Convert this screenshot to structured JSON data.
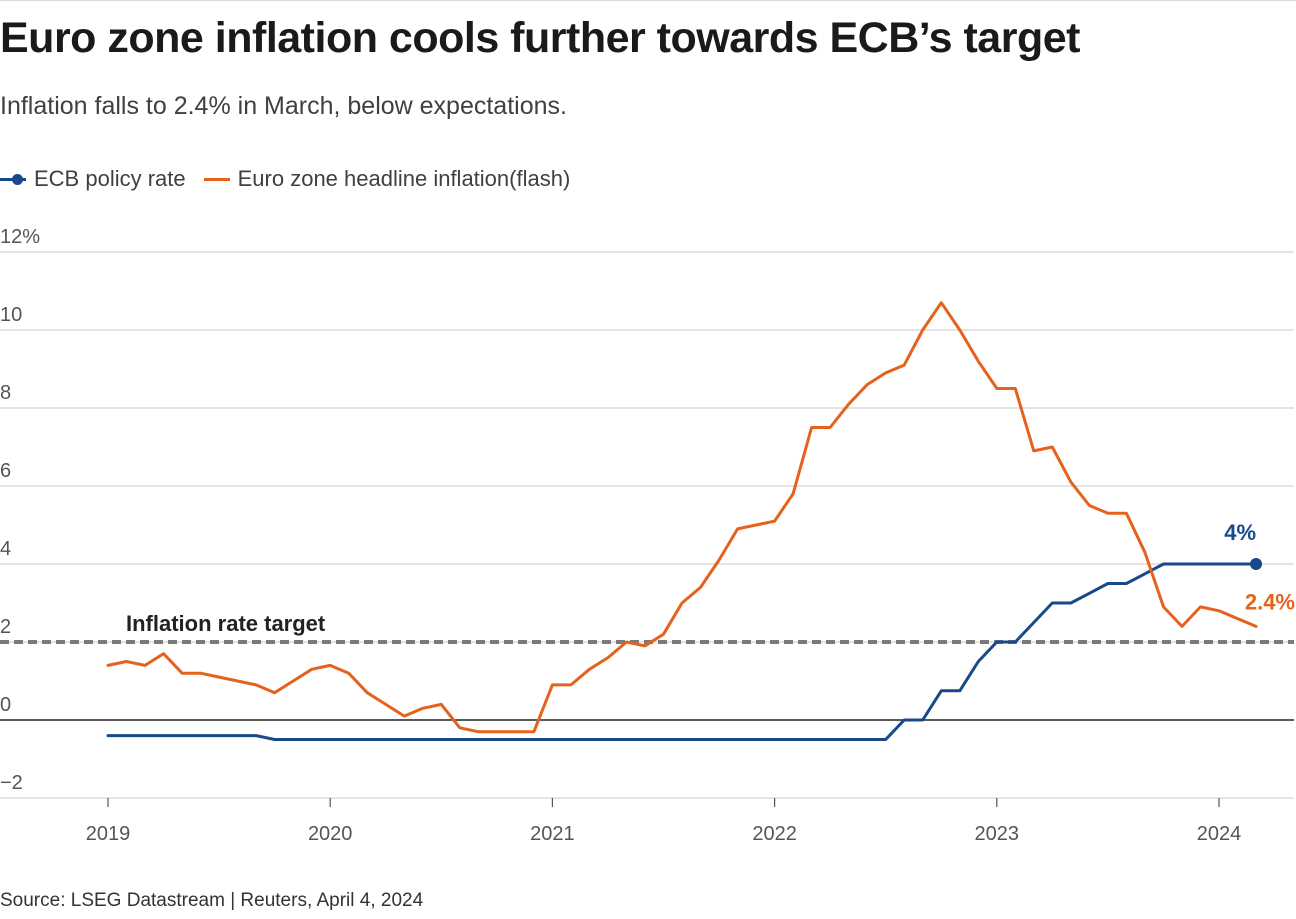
{
  "title": "Euro zone inflation cools further towards ECB’s target",
  "subtitle": "Inflation falls to 2.4% in March, below expectations.",
  "legend": [
    {
      "label": "ECB policy rate",
      "color": "#174a8b"
    },
    {
      "label": "Euro zone headline inflation(flash)",
      "color": "#e4621c"
    }
  ],
  "source": "Source: LSEG Datastream | Reuters, April 4, 2024",
  "chart_data": {
    "type": "line",
    "ylim": [
      -2,
      12
    ],
    "yticks": [
      {
        "value": 12,
        "label": "12%"
      },
      {
        "value": 10,
        "label": "10"
      },
      {
        "value": 8,
        "label": "8"
      },
      {
        "value": 6,
        "label": "6"
      },
      {
        "value": 4,
        "label": "4"
      },
      {
        "value": 2,
        "label": "2"
      },
      {
        "value": 0,
        "label": "0"
      },
      {
        "value": -2,
        "label": "−2"
      }
    ],
    "xlim": [
      "2019-01",
      "2024-03"
    ],
    "xticks": [
      "2019",
      "2020",
      "2021",
      "2022",
      "2023",
      "2024"
    ],
    "grid": true,
    "target": {
      "value": 2,
      "label": "Inflation rate target"
    },
    "series": [
      {
        "name": "ECB policy rate",
        "color": "#174a8b",
        "end_label": "4%",
        "end_marker": true,
        "points": [
          [
            "2019-01",
            -0.4
          ],
          [
            "2019-09",
            -0.4
          ],
          [
            "2019-10",
            -0.5
          ],
          [
            "2022-07",
            -0.5
          ],
          [
            "2022-08",
            0.0
          ],
          [
            "2022-09",
            0.0
          ],
          [
            "2022-10",
            0.75
          ],
          [
            "2022-11",
            0.75
          ],
          [
            "2022-12",
            1.5
          ],
          [
            "2023-01",
            2.0
          ],
          [
            "2023-02",
            2.0
          ],
          [
            "2023-03",
            2.5
          ],
          [
            "2023-04",
            3.0
          ],
          [
            "2023-05",
            3.0
          ],
          [
            "2023-06",
            3.25
          ],
          [
            "2023-07",
            3.5
          ],
          [
            "2023-08",
            3.5
          ],
          [
            "2023-09",
            3.75
          ],
          [
            "2023-10",
            4.0
          ],
          [
            "2024-03",
            4.0
          ]
        ]
      },
      {
        "name": "Euro zone headline inflation(flash)",
        "color": "#e4621c",
        "end_label": "2.4%",
        "points": [
          [
            "2019-01",
            1.4
          ],
          [
            "2019-02",
            1.5
          ],
          [
            "2019-03",
            1.4
          ],
          [
            "2019-04",
            1.7
          ],
          [
            "2019-05",
            1.2
          ],
          [
            "2019-06",
            1.2
          ],
          [
            "2019-07",
            1.1
          ],
          [
            "2019-08",
            1.0
          ],
          [
            "2019-09",
            0.9
          ],
          [
            "2019-10",
            0.7
          ],
          [
            "2019-11",
            1.0
          ],
          [
            "2019-12",
            1.3
          ],
          [
            "2020-01",
            1.4
          ],
          [
            "2020-02",
            1.2
          ],
          [
            "2020-03",
            0.7
          ],
          [
            "2020-04",
            0.4
          ],
          [
            "2020-05",
            0.1
          ],
          [
            "2020-06",
            0.3
          ],
          [
            "2020-07",
            0.4
          ],
          [
            "2020-08",
            -0.2
          ],
          [
            "2020-09",
            -0.3
          ],
          [
            "2020-10",
            -0.3
          ],
          [
            "2020-11",
            -0.3
          ],
          [
            "2020-12",
            -0.3
          ],
          [
            "2021-01",
            0.9
          ],
          [
            "2021-02",
            0.9
          ],
          [
            "2021-03",
            1.3
          ],
          [
            "2021-04",
            1.6
          ],
          [
            "2021-05",
            2.0
          ],
          [
            "2021-06",
            1.9
          ],
          [
            "2021-07",
            2.2
          ],
          [
            "2021-08",
            3.0
          ],
          [
            "2021-09",
            3.4
          ],
          [
            "2021-10",
            4.1
          ],
          [
            "2021-11",
            4.9
          ],
          [
            "2021-12",
            5.0
          ],
          [
            "2022-01",
            5.1
          ],
          [
            "2022-02",
            5.8
          ],
          [
            "2022-03",
            7.5
          ],
          [
            "2022-04",
            7.5
          ],
          [
            "2022-05",
            8.1
          ],
          [
            "2022-06",
            8.6
          ],
          [
            "2022-07",
            8.9
          ],
          [
            "2022-08",
            9.1
          ],
          [
            "2022-09",
            10.0
          ],
          [
            "2022-10",
            10.7
          ],
          [
            "2022-11",
            10.0
          ],
          [
            "2022-12",
            9.2
          ],
          [
            "2023-01",
            8.5
          ],
          [
            "2023-02",
            8.5
          ],
          [
            "2023-03",
            6.9
          ],
          [
            "2023-04",
            7.0
          ],
          [
            "2023-05",
            6.1
          ],
          [
            "2023-06",
            5.5
          ],
          [
            "2023-07",
            5.3
          ],
          [
            "2023-08",
            5.3
          ],
          [
            "2023-09",
            4.3
          ],
          [
            "2023-10",
            2.9
          ],
          [
            "2023-11",
            2.4
          ],
          [
            "2023-12",
            2.9
          ],
          [
            "2024-01",
            2.8
          ],
          [
            "2024-02",
            2.6
          ],
          [
            "2024-03",
            2.4
          ]
        ]
      }
    ]
  }
}
